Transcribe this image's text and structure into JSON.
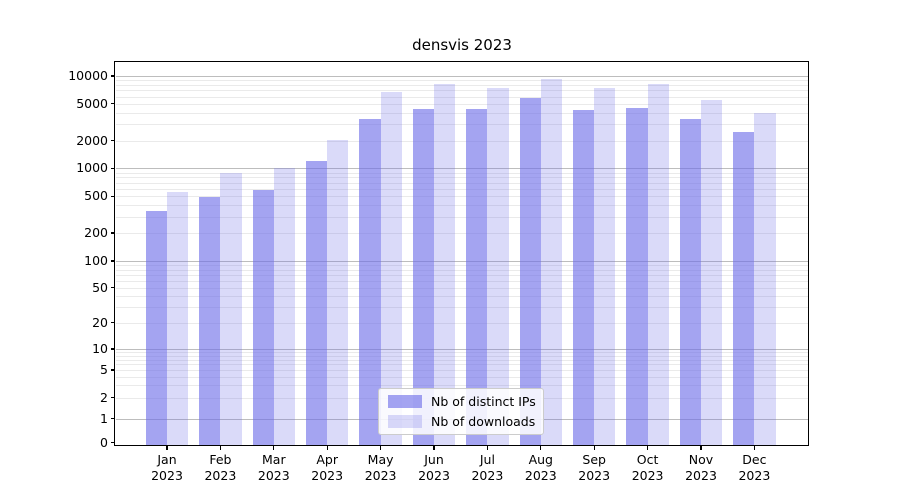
{
  "chart_data": {
    "type": "bar",
    "title": "densvis 2023",
    "x_months": [
      "Jan",
      "Feb",
      "Mar",
      "Apr",
      "May",
      "Jun",
      "Jul",
      "Aug",
      "Sep",
      "Oct",
      "Nov",
      "Dec"
    ],
    "x_year": "2023",
    "y_scale": "symlog",
    "y_ticks": [
      0,
      1,
      2,
      5,
      10,
      20,
      50,
      100,
      200,
      500,
      1000,
      2000,
      5000,
      10000
    ],
    "y_max": 14000,
    "grid": {
      "enabled": true,
      "major_values": [
        1,
        10,
        100,
        1000,
        10000
      ],
      "major_color": "#bdbdbd",
      "minor_color": "#eaeaea"
    },
    "legend_position": "bottom-center",
    "series": [
      {
        "name": "Nb of distinct IPs",
        "color": "#6c6ce8",
        "alpha": 0.62,
        "values": [
          350,
          490,
          590,
          1200,
          3450,
          4400,
          4400,
          5750,
          4250,
          4500,
          3450,
          2500
        ]
      },
      {
        "name": "Nb of downloads",
        "color": "#6c6ce8",
        "alpha": 0.25,
        "values": [
          550,
          880,
          1000,
          2050,
          6800,
          8100,
          7400,
          9400,
          7450,
          8100,
          5500,
          4000
        ]
      }
    ]
  }
}
